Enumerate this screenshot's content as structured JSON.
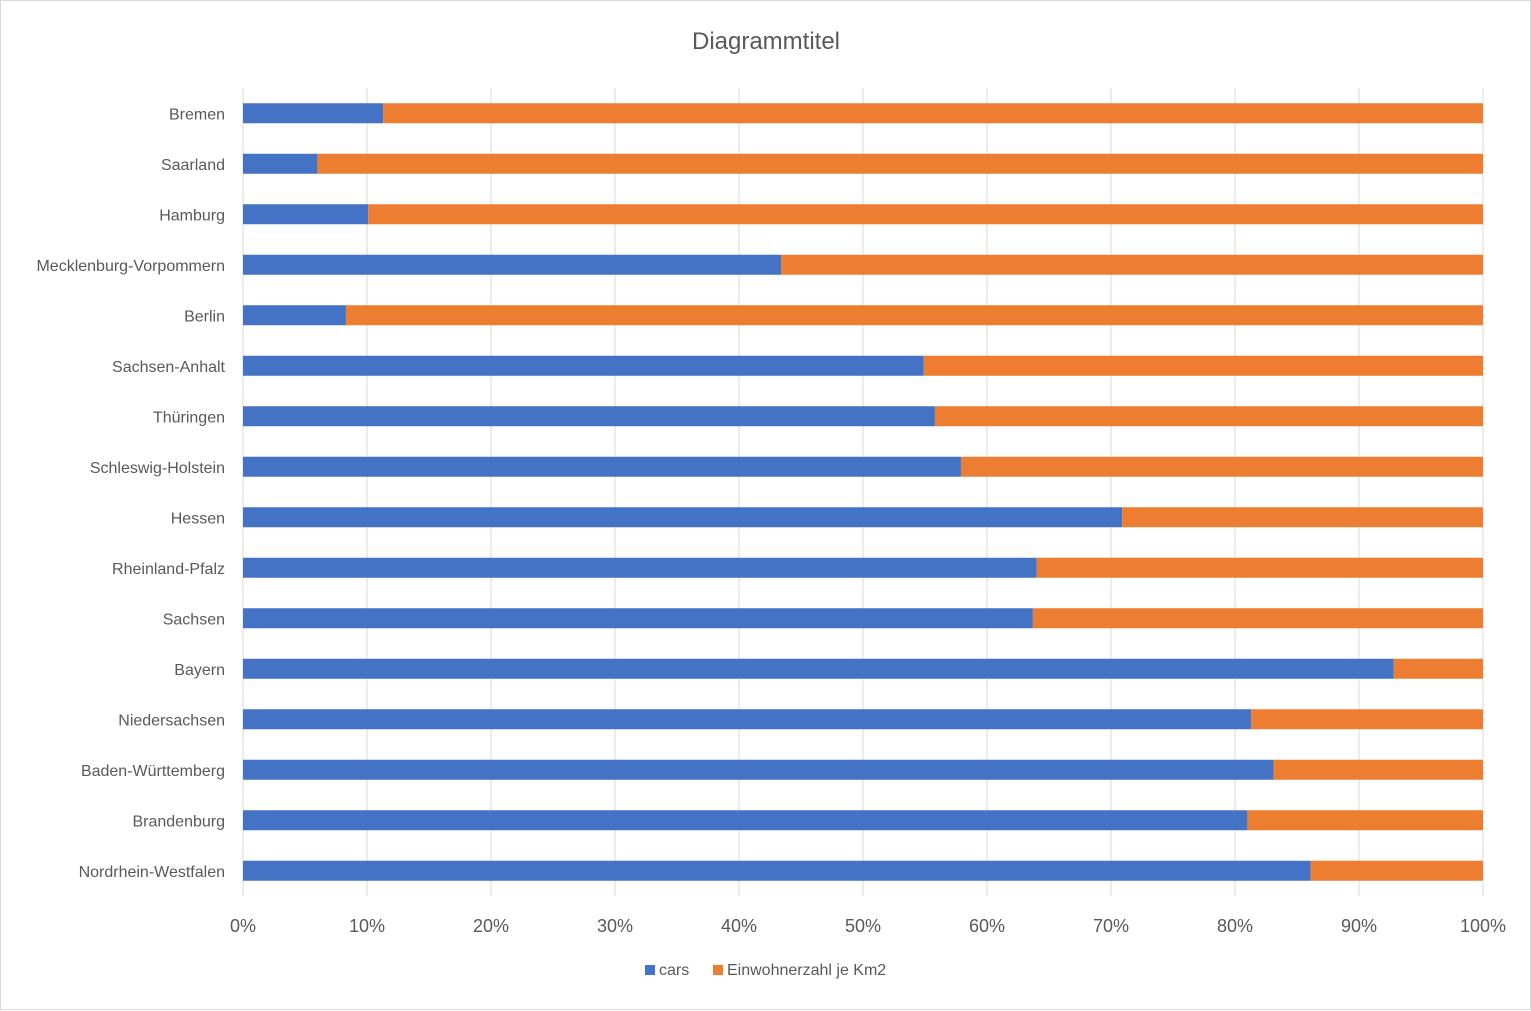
{
  "chart_data": {
    "type": "bar",
    "orientation": "horizontal",
    "stacking": "percent",
    "title": "Diagrammtitel",
    "categories": [
      "Bremen",
      "Saarland",
      "Hamburg",
      "Mecklenburg-Vorpommern",
      "Berlin",
      "Sachsen-Anhalt",
      "Thüringen",
      "Schleswig-Holstein",
      "Hessen",
      "Rheinland-Pfalz",
      "Sachsen",
      "Bayern",
      "Niedersachsen",
      "Baden-Württemberg",
      "Brandenburg",
      "Nordrhein-Westfalen"
    ],
    "series": [
      {
        "name": "cars",
        "color": "#4472C4",
        "values": [
          11.3,
          6.0,
          10.1,
          43.4,
          8.3,
          54.9,
          55.8,
          57.9,
          70.9,
          64.0,
          63.7,
          92.8,
          81.3,
          83.1,
          81.0,
          86.1
        ]
      },
      {
        "name": "Einwohnerzahl je Km2",
        "color": "#ED7D31",
        "values": [
          88.7,
          94.0,
          89.9,
          56.6,
          91.7,
          45.1,
          44.2,
          42.1,
          29.1,
          36.0,
          36.3,
          7.2,
          18.7,
          16.9,
          19.0,
          13.9
        ]
      }
    ],
    "x_ticks": [
      "0%",
      "10%",
      "20%",
      "30%",
      "40%",
      "50%",
      "60%",
      "70%",
      "80%",
      "90%",
      "100%"
    ],
    "xlim": [
      0,
      100
    ],
    "grid": "vertical",
    "legend_position": "bottom",
    "gridline_color": "#d9d9d9"
  }
}
